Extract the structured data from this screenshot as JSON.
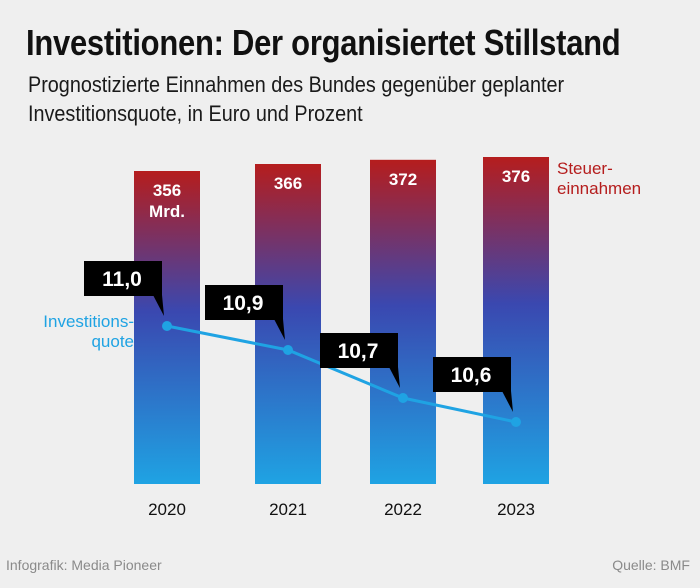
{
  "title": "Investitionen: Der organisiertet Stillstand",
  "subtitle_line1": "Prognostizierte Einnahmen des Bundes gegenüber geplanter",
  "subtitle_line2": "Investitionsquote, in Euro und Prozent",
  "footer_left": "Infografik: Media Pioneer",
  "footer_right": "Quelle: BMF",
  "colors": {
    "bar_top": "#b51d1d",
    "bar_mid": "#3a48b0",
    "bar_bottom": "#1fa3e3",
    "line": "#1fa3e3",
    "callout_bg": "#000000",
    "revenue_label": "#b51d1d",
    "quota_label": "#1fa3e3"
  },
  "chart_data": {
    "type": "bar+line",
    "categories": [
      "2020",
      "2021",
      "2022",
      "2023"
    ],
    "series": [
      {
        "name": "Steuereinnahmen",
        "label_lines": [
          "Steuer-",
          "einnahmen"
        ],
        "kind": "bar",
        "values": [
          356,
          366,
          372,
          376
        ],
        "value_labels": [
          "356",
          "366",
          "372",
          "376"
        ],
        "unit_label": "Mrd.",
        "ylim": [
          0,
          376
        ]
      },
      {
        "name": "Investitionsquote",
        "label_lines": [
          "Investitions-",
          "quote"
        ],
        "kind": "line",
        "values": [
          11.0,
          10.9,
          10.7,
          10.6
        ],
        "value_labels": [
          "11,0",
          "10,9",
          "10,7",
          "10,6"
        ]
      }
    ]
  }
}
